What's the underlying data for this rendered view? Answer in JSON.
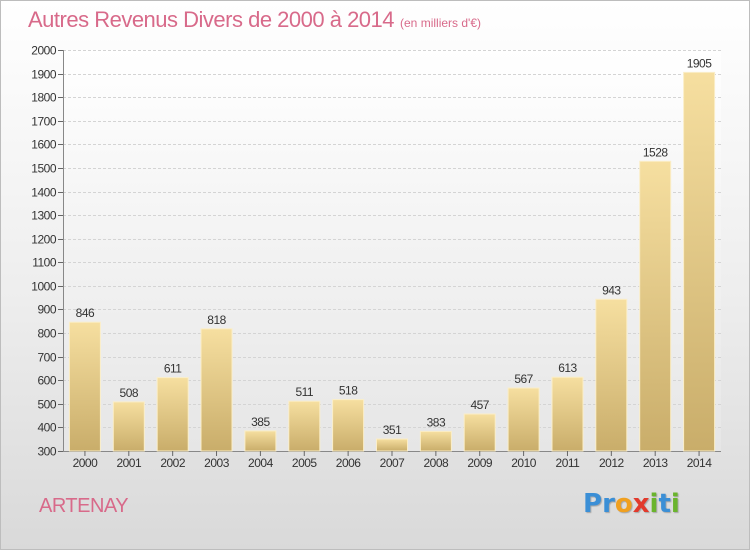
{
  "title": "Autres Revenus Divers de 2000 à 2014",
  "title_unit": "(en milliers d'€)",
  "location": "ARTENAY",
  "logo": {
    "letters": [
      "P",
      "r",
      "o",
      "x",
      "i",
      "t",
      "i"
    ],
    "colors": [
      "#3b8fd6",
      "#3b8fd6",
      "#f0a020",
      "#e23a2c",
      "#6ab42d",
      "#3b8fd6",
      "#6ab42d"
    ]
  },
  "colors": {
    "bar_top": "#f6dfa0",
    "bar_bottom": "#c9ad6a",
    "title": "#d86a8a"
  },
  "chart_data": {
    "type": "bar",
    "title": "Autres Revenus Divers de 2000 à 2014",
    "subtitle": "(en milliers d'€)",
    "xlabel": "",
    "ylabel": "",
    "categories": [
      "2000",
      "2001",
      "2002",
      "2003",
      "2004",
      "2005",
      "2006",
      "2007",
      "2008",
      "2009",
      "2010",
      "2011",
      "2012",
      "2013",
      "2014"
    ],
    "values": [
      846,
      508,
      611,
      818,
      385,
      511,
      518,
      351,
      383,
      457,
      567,
      613,
      943,
      1528,
      1905
    ],
    "ylim": [
      300,
      2000
    ],
    "yticks": [
      300,
      400,
      500,
      600,
      700,
      800,
      900,
      1000,
      1100,
      1200,
      1300,
      1400,
      1500,
      1600,
      1700,
      1800,
      1900,
      2000
    ],
    "grid": true,
    "legend": "none"
  }
}
